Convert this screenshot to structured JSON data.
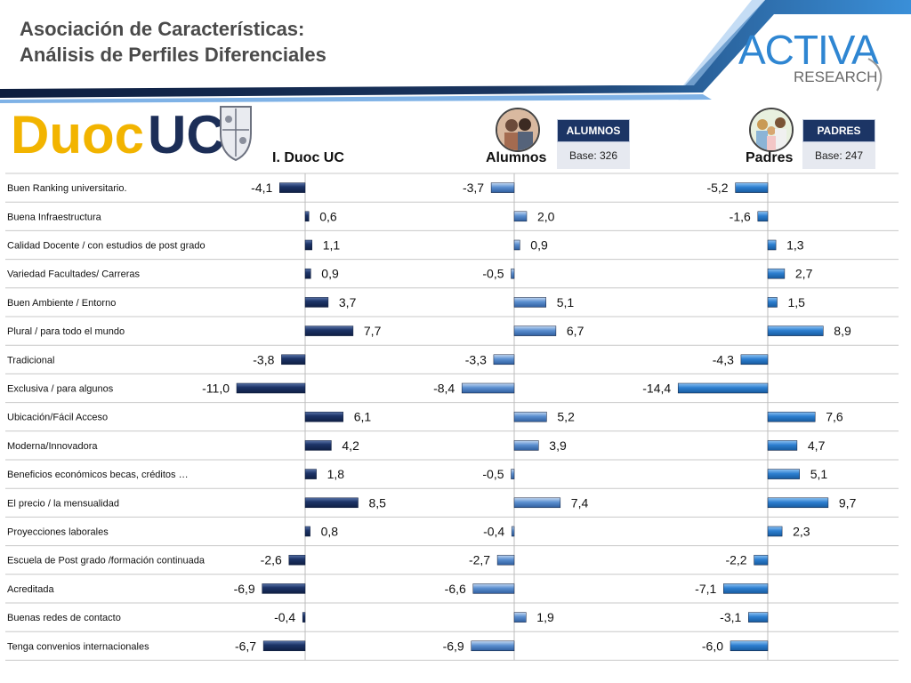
{
  "page": {
    "title_line1": "Asociación de Características:",
    "title_line2": "Análisis de Perfiles Diferenciales"
  },
  "brand": {
    "logo_main": "ACTIVA",
    "logo_sub": "RESEARCH"
  },
  "institution_logo": {
    "text_a": "Duoc",
    "text_b": "UC"
  },
  "groups": {
    "duoc": {
      "header": "I. Duoc UC"
    },
    "alumnos": {
      "header": "Alumnos",
      "badge_title": "ALUMNOS",
      "badge_base": "Base: 326"
    },
    "padres": {
      "header": "Padres",
      "badge_title": "PADRES",
      "badge_base": "Base: 247"
    }
  },
  "colors": {
    "duoc_bar": "#1d3468",
    "alumnos_bar": "#5b8fd0",
    "padres_bar": "#2d7fd0",
    "header_navy": "#1c3565"
  },
  "chart_data": {
    "type": "bar",
    "orientation": "horizontal",
    "categories": [
      "Buen Ranking universitario.",
      " Buena Infraestructura",
      "Calidad Docente / con estudios de post grado",
      "Variedad Facultades/ Carreras",
      "Buen Ambiente / Entorno",
      "Plural / para todo el mundo",
      "Tradicional",
      "Exclusiva / para algunos",
      "Ubicación/Fácil Acceso",
      "Moderna/Innovadora",
      "Beneficios económicos becas, créditos …",
      "El precio / la mensualidad",
      "Proyecciones laborales",
      "Escuela de Post grado /formación continuada",
      "Acreditada",
      "Buenas redes de contacto",
      "Tenga convenios internacionales"
    ],
    "series": [
      {
        "name": "I. Duoc UC",
        "values": [
          -4.1,
          0.6,
          1.1,
          0.9,
          3.7,
          7.7,
          -3.8,
          -11.0,
          6.1,
          4.2,
          1.8,
          8.5,
          0.8,
          -2.6,
          -6.9,
          -0.4,
          -6.7
        ],
        "labels": [
          "-4,1",
          "0,6",
          "1,1",
          "0,9",
          "3,7",
          "7,7",
          "-3,8",
          "-11,0",
          "6,1",
          "4,2",
          "1,8",
          "8,5",
          "0,8",
          "-2,6",
          "-6,9",
          "-0,4",
          "-6,7"
        ]
      },
      {
        "name": "Alumnos",
        "values": [
          -3.7,
          2.0,
          0.9,
          -0.5,
          5.1,
          6.7,
          -3.3,
          -8.4,
          5.2,
          3.9,
          -0.5,
          7.4,
          -0.4,
          -2.7,
          -6.6,
          1.9,
          -6.9
        ],
        "labels": [
          "-3,7",
          "2,0",
          "0,9",
          "-0,5",
          "5,1",
          "6,7",
          "-3,3",
          "-8,4",
          "5,2",
          "3,9",
          "-0,5",
          "7,4",
          "-0,4",
          "-2,7",
          "-6,6",
          "1,9",
          "-6,9"
        ]
      },
      {
        "name": "Padres",
        "values": [
          -5.2,
          -1.6,
          1.3,
          2.7,
          1.5,
          8.9,
          -4.3,
          -14.4,
          7.6,
          4.7,
          5.1,
          9.7,
          2.3,
          -2.2,
          -7.1,
          -3.1,
          -6.0
        ],
        "labels": [
          "-5,2",
          "-1,6",
          "1,3",
          "2,7",
          "1,5",
          "8,9",
          "-4,3",
          "-14,4",
          "7,6",
          "4,7",
          "5,1",
          "9,7",
          "2,3",
          "-2,2",
          "-7,1",
          "-3,1",
          "-6,0"
        ]
      }
    ]
  }
}
